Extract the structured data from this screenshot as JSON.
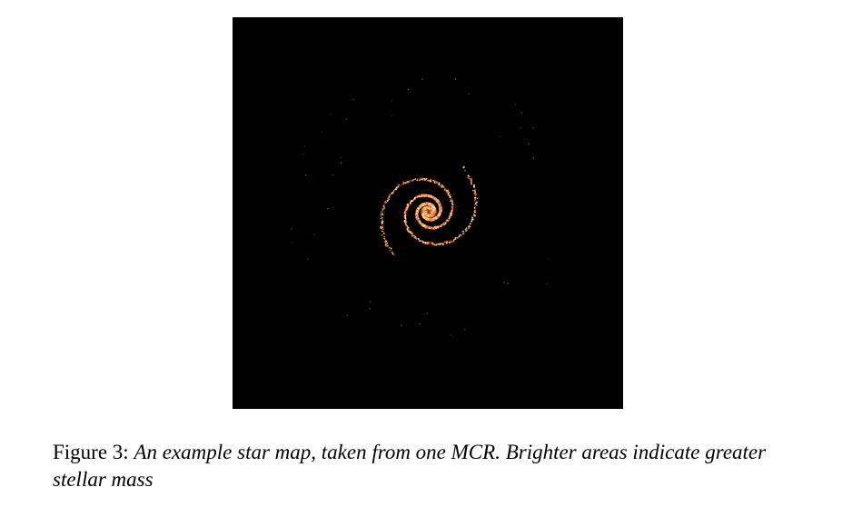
{
  "figure": {
    "label": "Figure 3:",
    "caption": "An example star map, taken from one MCR. Brighter areas indicate greater stellar mass",
    "panel_background": "#000000",
    "star_colors": [
      "#ff6a1a",
      "#ffb347",
      "#ffd9a0",
      "#e0452a",
      "#fff2d6"
    ],
    "arms": 2
  }
}
